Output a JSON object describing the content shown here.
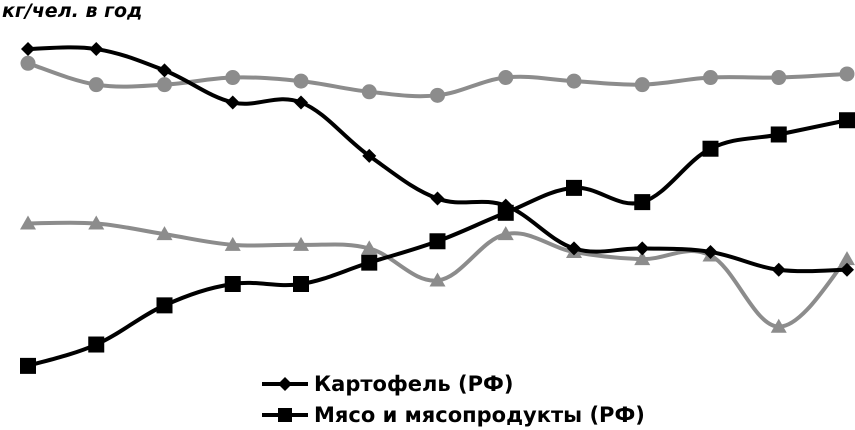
{
  "chart_data": {
    "type": "line",
    "ylabel": "кг/чел. в год",
    "xlabel": "",
    "title": "",
    "x": [
      1,
      2,
      3,
      4,
      5,
      6,
      7,
      8,
      9,
      10,
      11,
      12,
      13
    ],
    "grid": false,
    "legend_position": "bottom-center",
    "ylim": [
      0,
      100
    ],
    "series": [
      {
        "name": "Картофель (РФ)",
        "color": "#000000",
        "marker": "diamond",
        "legend": true,
        "values": [
          91,
          91,
          85,
          76,
          76,
          61,
          49,
          47,
          35,
          35,
          34,
          29,
          29
        ]
      },
      {
        "name": "Мясо и мясопродукты (РФ)",
        "color": "#000000",
        "marker": "square",
        "legend": true,
        "values": [
          2,
          8,
          19,
          25,
          25,
          31,
          37,
          45,
          52,
          48,
          63,
          67,
          71
        ]
      },
      {
        "name": "",
        "color": "#8c8c8c",
        "marker": "circle",
        "legend": false,
        "values": [
          87,
          81,
          81,
          83,
          82,
          79,
          78,
          83,
          82,
          81,
          83,
          83,
          84
        ]
      },
      {
        "name": "",
        "color": "#8c8c8c",
        "marker": "triangle",
        "legend": false,
        "values": [
          42,
          42,
          39,
          36,
          36,
          35,
          26,
          39,
          34,
          32,
          33,
          13,
          32
        ]
      }
    ]
  }
}
